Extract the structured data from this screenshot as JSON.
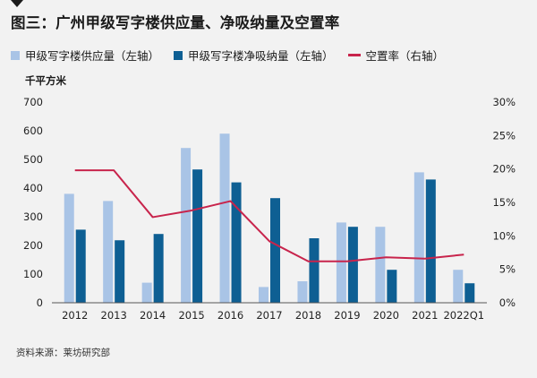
{
  "header": {
    "title": "图三：广州甲级写字楼供应量、净吸纳量及空置率"
  },
  "legend": [
    {
      "label": "甲级写字楼供应量（左轴）",
      "color": "#a9c4e6",
      "kind": "bar"
    },
    {
      "label": "甲级写字楼净吸纳量（左轴）",
      "color": "#0e5f93",
      "kind": "bar"
    },
    {
      "label": "空置率（右轴）",
      "color": "#c8244c",
      "kind": "line"
    }
  ],
  "unit_label": "千平方米",
  "source": "资料来源：莱坊研究部",
  "chart_data": {
    "type": "bar",
    "categories": [
      "2012",
      "2013",
      "2014",
      "2015",
      "2016",
      "2017",
      "2018",
      "2019",
      "2020",
      "2021",
      "2022Q1"
    ],
    "series": [
      {
        "name": "甲级写字楼供应量（左轴）",
        "axis": "left",
        "type": "bar",
        "color": "#a9c4e6",
        "values": [
          380,
          355,
          70,
          540,
          590,
          55,
          75,
          280,
          265,
          455,
          115
        ]
      },
      {
        "name": "甲级写字楼净吸纳量（左轴）",
        "axis": "left",
        "type": "bar",
        "color": "#0e5f93",
        "values": [
          255,
          218,
          240,
          465,
          420,
          365,
          225,
          265,
          115,
          430,
          68
        ]
      },
      {
        "name": "空置率（右轴）",
        "axis": "right",
        "type": "line",
        "color": "#c8244c",
        "values": [
          0.198,
          0.198,
          0.128,
          0.138,
          0.152,
          0.092,
          0.062,
          0.062,
          0.068,
          0.066,
          0.072
        ]
      }
    ],
    "y_left": {
      "min": 0,
      "max": 700,
      "ticks": [
        "0",
        "100",
        "200",
        "300",
        "400",
        "500",
        "600",
        "700"
      ]
    },
    "y_right": {
      "min": 0,
      "max": 0.3,
      "ticks": [
        "0%",
        "5%",
        "10%",
        "15%",
        "20%",
        "25%",
        "30%"
      ]
    },
    "grid": false
  }
}
